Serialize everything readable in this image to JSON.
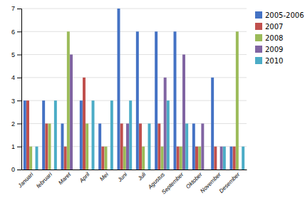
{
  "chart_data": {
    "type": "bar",
    "categories": [
      "Januari",
      "februari",
      "Maret",
      "April",
      "Mei",
      "Juni",
      "Juli",
      "Agustus",
      "September",
      "Oktober",
      "November",
      "Desember"
    ],
    "series": [
      {
        "name": "2005-2006",
        "color": "#4472C4",
        "values": [
          3,
          3,
          2,
          3,
          2,
          7,
          6,
          6,
          6,
          2,
          4,
          1
        ]
      },
      {
        "name": "2007",
        "color": "#C0504D",
        "values": [
          3,
          2,
          1,
          4,
          1,
          2,
          2,
          2,
          1,
          1,
          1,
          1
        ]
      },
      {
        "name": "2008",
        "color": "#9BBB59",
        "values": [
          1,
          2,
          6,
          2,
          1,
          1,
          1,
          1,
          1,
          1,
          0,
          6
        ]
      },
      {
        "name": "2009",
        "color": "#8064A2",
        "values": [
          0,
          0,
          5,
          0,
          0,
          2,
          0,
          4,
          5,
          2,
          1,
          0
        ]
      },
      {
        "name": "2010",
        "color": "#4BACC6",
        "values": [
          1,
          3,
          0,
          3,
          3,
          3,
          2,
          3,
          2,
          0,
          1,
          1
        ]
      }
    ],
    "ylim": [
      0,
      7
    ],
    "yticks": [
      0,
      1,
      2,
      3,
      4,
      5,
      6,
      7
    ],
    "grid": true,
    "legend": "right"
  }
}
